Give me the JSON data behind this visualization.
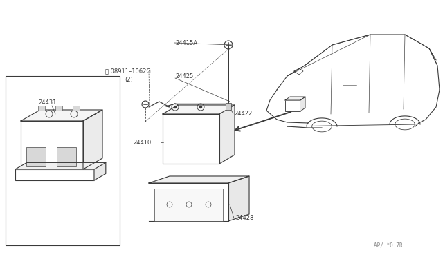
{
  "background_color": "#ffffff",
  "watermark": "AP/ *0 7R",
  "fig_width": 6.4,
  "fig_height": 3.72,
  "line_color": "#3a3a3a",
  "label_fontsize": 6.0,
  "dpi": 100
}
